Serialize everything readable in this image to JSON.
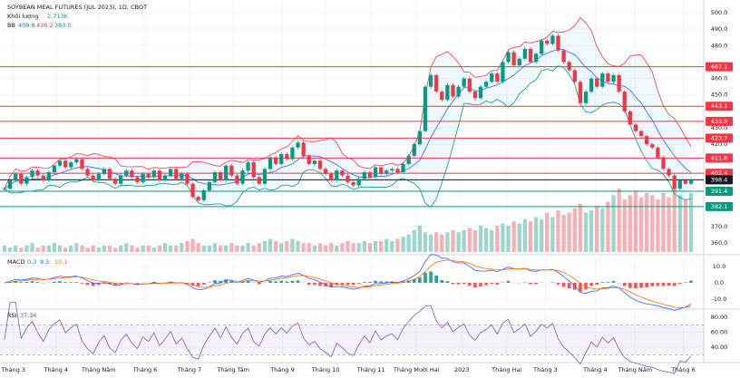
{
  "chart_data": {
    "type": "candlestick",
    "title": "SOYBEAN MEAL FUTURES (JUL 2023), 1D, CBOT",
    "volume_label": "Khối lượng",
    "volume_value": "2.713K",
    "bb_label": "BB",
    "bb_values": [
      "409.8",
      "436.2",
      "383.0"
    ],
    "xlim": [
      0,
      124
    ],
    "xticks": [
      {
        "value": 1.6,
        "label": "Tháng 3"
      },
      {
        "value": 9.3,
        "label": "Tháng 4"
      },
      {
        "value": 17,
        "label": "Tháng Năm"
      },
      {
        "value": 25.4,
        "label": "Tháng 6"
      },
      {
        "value": 33.4,
        "label": "Tháng 7"
      },
      {
        "value": 41.3,
        "label": "Tháng Tám"
      },
      {
        "value": 50.2,
        "label": "Tháng 9"
      },
      {
        "value": 58,
        "label": "Tháng 10"
      },
      {
        "value": 66.2,
        "label": "Tháng 11"
      },
      {
        "value": 74.4,
        "label": "Tháng Mười Hai"
      },
      {
        "value": 82.6,
        "label": "2023"
      },
      {
        "value": 90.7,
        "label": "Tháng Hai"
      },
      {
        "value": 97.7,
        "label": "Tháng 3"
      },
      {
        "value": 106.7,
        "label": "Tháng 4"
      },
      {
        "value": 113.9,
        "label": "Tháng Năm"
      },
      {
        "value": 122.6,
        "label": "Tháng 6"
      }
    ],
    "ylim": [
      354.5,
      504.4
    ],
    "yticks": [
      {
        "value": 500,
        "label": "500.0"
      },
      {
        "value": 490,
        "label": "490.0"
      },
      {
        "value": 480,
        "label": "480.0"
      },
      {
        "value": 460,
        "label": "460.0"
      },
      {
        "value": 450,
        "label": "450.0"
      },
      {
        "value": 430,
        "label": "430.0"
      },
      {
        "value": 420,
        "label": "420.0"
      },
      {
        "value": 370,
        "label": "370.0"
      },
      {
        "value": 360,
        "label": "360.0"
      }
    ],
    "up_color": "#089981",
    "down_color": "#f23645",
    "values": [
      393,
      398,
      402,
      396,
      400,
      404,
      401,
      398,
      403,
      407,
      410,
      406,
      409,
      411,
      405,
      401,
      398,
      402,
      405,
      399,
      396,
      401,
      404,
      400,
      397,
      402,
      400,
      404,
      398,
      401,
      405,
      399,
      402,
      396,
      388,
      386,
      392,
      397,
      403,
      398,
      407,
      401,
      396,
      404,
      409,
      400,
      396,
      405,
      412,
      408,
      414,
      411,
      418,
      421,
      413,
      408,
      410,
      405,
      402,
      398,
      404,
      401,
      397,
      395,
      399,
      403,
      400,
      406,
      402,
      404,
      405,
      403,
      408,
      413,
      420,
      428,
      455,
      462,
      452,
      447,
      456,
      449,
      455,
      460,
      452,
      448,
      455,
      458,
      463,
      458,
      470,
      476,
      468,
      472,
      478,
      470,
      475,
      483,
      481,
      486,
      477,
      470,
      465,
      458,
      445,
      452,
      460,
      455,
      463,
      458,
      462,
      452,
      440,
      432,
      428,
      425,
      420,
      418,
      412,
      405,
      401,
      393,
      398,
      396,
      398.4
    ],
    "volume": [
      0.3,
      0.2,
      0.3,
      0.2,
      0.3,
      0.4,
      0.2,
      0.3,
      0.3,
      0.4,
      0.3,
      0.2,
      0.3,
      0.4,
      0.3,
      0.2,
      0.3,
      0.2,
      0.3,
      0.3,
      0.2,
      0.3,
      0.4,
      0.3,
      0.2,
      0.3,
      0.3,
      0.2,
      0.3,
      0.4,
      0.3,
      0.3,
      0.4,
      0.5,
      0.6,
      0.4,
      0.3,
      0.3,
      0.4,
      0.3,
      0.3,
      0.4,
      0.3,
      0.3,
      0.4,
      0.3,
      0.4,
      0.5,
      0.6,
      0.5,
      0.4,
      0.5,
      0.6,
      0.5,
      0.4,
      0.4,
      0.3,
      0.4,
      0.3,
      0.4,
      0.3,
      0.4,
      0.5,
      0.4,
      0.4,
      0.5,
      0.4,
      0.5,
      0.5,
      0.6,
      0.5,
      0.6,
      0.7,
      0.8,
      1.0,
      1.2,
      0.9,
      0.8,
      0.9,
      0.8,
      0.9,
      1.0,
      0.9,
      1.0,
      1.1,
      1.0,
      1.2,
      1.1,
      1.0,
      1.2,
      1.3,
      1.2,
      1.4,
      1.3,
      1.5,
      1.4,
      1.6,
      1.5,
      1.8,
      1.6,
      1.9,
      1.7,
      1.8,
      2.0,
      2.2,
      1.8,
      1.9,
      2.1,
      2.0,
      2.3,
      2.6,
      2.9,
      2.4,
      2.6,
      2.8,
      2.5,
      2.7,
      2.6,
      2.4,
      2.7,
      2.5,
      2.9,
      2.6,
      2.4,
      2.7
    ],
    "levels": [
      {
        "value": 467.1,
        "color": "#f23645"
      },
      {
        "value": 443.1,
        "color": "#f23645"
      },
      {
        "value": 433.9,
        "color": "#f23645"
      },
      {
        "value": 423.7,
        "color": "#f23645"
      },
      {
        "value": 411.6,
        "color": "#f23645"
      },
      {
        "value": 402.4,
        "color": "#f23645"
      },
      {
        "value": 391.4,
        "color": "#089981"
      },
      {
        "value": 382.1,
        "color": "#089981"
      },
      {
        "value": 398.4,
        "color": "#131722"
      }
    ],
    "macd": {
      "label": "MACD",
      "readout": [
        "0.3",
        "9.5",
        "10.1"
      ],
      "ylim": [
        -15.6,
        15.6
      ],
      "yticks": [
        {
          "value": 10,
          "label": "10.0"
        },
        {
          "value": 0,
          "label": "0.0"
        },
        {
          "value": -10,
          "label": "-10.0"
        }
      ]
    },
    "rsi": {
      "label": "RSI",
      "readout": "37.36",
      "ylim": [
        19.4,
        88.5
      ],
      "yticks": [
        {
          "value": 80,
          "label": "80.00"
        },
        {
          "value": 60,
          "label": "60.00"
        },
        {
          "value": 40,
          "label": "40.00"
        }
      ],
      "bands": [
        70,
        30
      ]
    }
  }
}
